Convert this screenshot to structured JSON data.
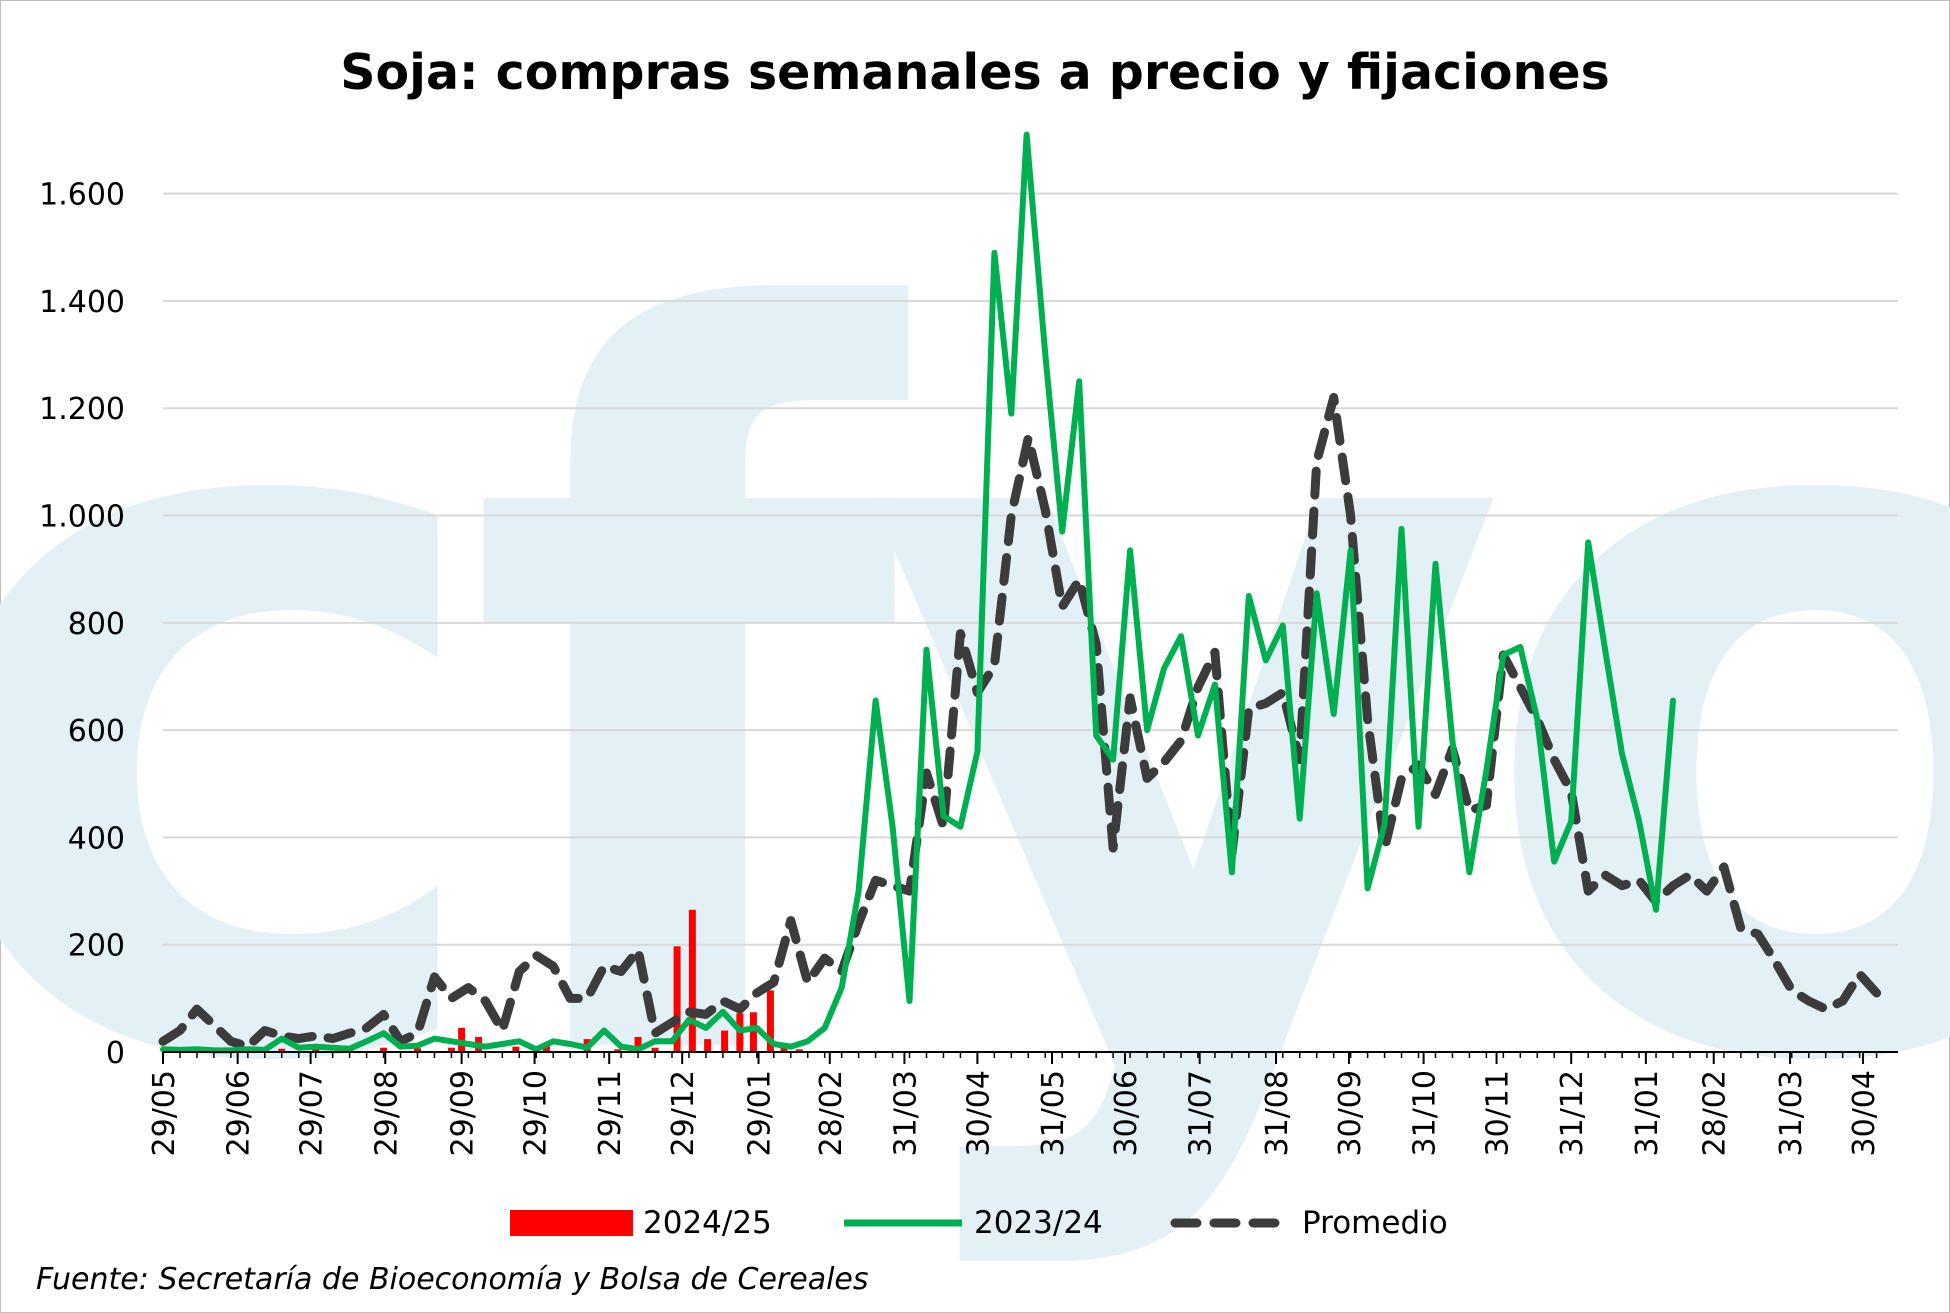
{
  "watermark": {
    "text": "cfyo",
    "color": "#e3f0f5"
  },
  "legend": [
    {
      "key": "bars",
      "label": "2024/25",
      "color": "#ff0000",
      "symbol": "bar"
    },
    {
      "key": "green",
      "label": "2023/24",
      "color": "#00b050",
      "symbol": "line"
    },
    {
      "key": "avg",
      "label": "Promedio",
      "color": "#3c3c3c",
      "symbol": "dashed-line"
    }
  ],
  "source": "Fuente: Secretaría de Bioeconomía y Bolsa de Cereales",
  "chart_data": {
    "type": "line",
    "title": "Soja: compras semanales a precio y fijaciones",
    "xlabel": "",
    "ylabel": "",
    "ylim": [
      0,
      1700
    ],
    "y_ticks": [
      {
        "value": 0,
        "label": "0"
      },
      {
        "value": 200,
        "label": "200"
      },
      {
        "value": 400,
        "label": "400"
      },
      {
        "value": 600,
        "label": "600"
      },
      {
        "value": 800,
        "label": "800"
      },
      {
        "value": 1000,
        "label": "1.000"
      },
      {
        "value": 1200,
        "label": "1.200"
      },
      {
        "value": 1400,
        "label": "1.400"
      },
      {
        "value": 1600,
        "label": "1.600"
      }
    ],
    "x_range": [
      "29/05",
      "30/04"
    ],
    "x_ticks": [
      {
        "label": "29/05",
        "week": 0
      },
      {
        "label": "29/06",
        "week": 4.4
      },
      {
        "label": "29/07",
        "week": 8.7
      },
      {
        "label": "29/08",
        "week": 13.1
      },
      {
        "label": "29/09",
        "week": 17.6
      },
      {
        "label": "29/10",
        "week": 21.9
      },
      {
        "label": "29/11",
        "week": 26.3
      },
      {
        "label": "29/12",
        "week": 30.6
      },
      {
        "label": "29/01",
        "week": 35.1
      },
      {
        "label": "28/02",
        "week": 39.3
      },
      {
        "label": "31/03",
        "week": 43.7
      },
      {
        "label": "30/04",
        "week": 48
      },
      {
        "label": "31/05",
        "week": 52.4
      },
      {
        "label": "30/06",
        "week": 56.7
      },
      {
        "label": "31/07",
        "week": 61.1
      },
      {
        "label": "31/08",
        "week": 65.6
      },
      {
        "label": "30/09",
        "week": 69.9
      },
      {
        "label": "31/10",
        "week": 74.3
      },
      {
        "label": "30/11",
        "week": 78.6
      },
      {
        "label": "31/12",
        "week": 83
      },
      {
        "label": "31/01",
        "week": 87.4
      },
      {
        "label": "28/02",
        "week": 91.4
      },
      {
        "label": "31/03",
        "week": 95.9
      },
      {
        "label": "30/04",
        "week": 100.2
      }
    ],
    "grid": true,
    "legend_position": "bottom",
    "series": [
      {
        "name": "2024/25",
        "kind": "bar",
        "color": "#ff0000",
        "points": [
          [
            7,
            6
          ],
          [
            9,
            5
          ],
          [
            11,
            4
          ],
          [
            13,
            8
          ],
          [
            15,
            7
          ],
          [
            17,
            8
          ],
          [
            17.6,
            45
          ],
          [
            18.6,
            28
          ],
          [
            20.8,
            10
          ],
          [
            22.6,
            14
          ],
          [
            25,
            24
          ],
          [
            26.8,
            5
          ],
          [
            28,
            28
          ],
          [
            29,
            8
          ],
          [
            30.3,
            197
          ],
          [
            31.2,
            265
          ],
          [
            32.1,
            24
          ],
          [
            33.1,
            40
          ],
          [
            34,
            72
          ],
          [
            34.8,
            74
          ],
          [
            35.8,
            115
          ],
          [
            36.6,
            12
          ],
          [
            37.5,
            5
          ]
        ]
      },
      {
        "name": "2023/24",
        "kind": "line",
        "color": "#00b050",
        "points": [
          [
            0,
            5
          ],
          [
            1,
            4
          ],
          [
            2,
            5
          ],
          [
            3,
            3
          ],
          [
            4,
            3
          ],
          [
            5,
            5
          ],
          [
            6,
            4
          ],
          [
            7,
            25
          ],
          [
            8,
            8
          ],
          [
            9,
            10
          ],
          [
            10,
            8
          ],
          [
            11,
            6
          ],
          [
            12,
            20
          ],
          [
            13,
            35
          ],
          [
            14,
            10
          ],
          [
            15,
            12
          ],
          [
            16,
            25
          ],
          [
            17,
            20
          ],
          [
            18,
            15
          ],
          [
            19,
            10
          ],
          [
            20,
            15
          ],
          [
            21,
            20
          ],
          [
            22,
            5
          ],
          [
            23,
            20
          ],
          [
            24,
            15
          ],
          [
            25,
            8
          ],
          [
            26,
            40
          ],
          [
            27,
            10
          ],
          [
            28,
            5
          ],
          [
            29,
            20
          ],
          [
            30,
            20
          ],
          [
            31,
            60
          ],
          [
            32,
            45
          ],
          [
            33,
            75
          ],
          [
            34,
            40
          ],
          [
            35,
            45
          ],
          [
            36,
            15
          ],
          [
            37,
            10
          ],
          [
            38,
            20
          ],
          [
            39,
            45
          ],
          [
            40,
            120
          ],
          [
            41,
            300
          ],
          [
            42,
            655
          ],
          [
            43,
            420
          ],
          [
            44,
            95
          ],
          [
            45,
            750
          ],
          [
            46,
            440
          ],
          [
            47,
            420
          ],
          [
            48,
            560
          ],
          [
            49,
            1490
          ],
          [
            50,
            1190
          ],
          [
            50.9,
            1710
          ],
          [
            52,
            1300
          ],
          [
            53,
            970
          ],
          [
            54,
            1250
          ],
          [
            55,
            590
          ],
          [
            56,
            545
          ],
          [
            57,
            935
          ],
          [
            58,
            600
          ],
          [
            59,
            715
          ],
          [
            60,
            775
          ],
          [
            61,
            590
          ],
          [
            62,
            685
          ],
          [
            63,
            335
          ],
          [
            64,
            850
          ],
          [
            65,
            730
          ],
          [
            66,
            795
          ],
          [
            67,
            435
          ],
          [
            68,
            855
          ],
          [
            69,
            630
          ],
          [
            70,
            935
          ],
          [
            71,
            305
          ],
          [
            72,
            425
          ],
          [
            73,
            975
          ],
          [
            74,
            420
          ],
          [
            75,
            910
          ],
          [
            76,
            580
          ],
          [
            77,
            335
          ],
          [
            78,
            525
          ],
          [
            79,
            740
          ],
          [
            80,
            755
          ],
          [
            81,
            620
          ],
          [
            82,
            355
          ],
          [
            83,
            430
          ],
          [
            84,
            950
          ],
          [
            85,
            750
          ],
          [
            86,
            555
          ],
          [
            87,
            430
          ],
          [
            88,
            265
          ],
          [
            89,
            655
          ]
        ]
      },
      {
        "name": "Promedio",
        "kind": "dashed-line",
        "color": "#3c3c3c",
        "points": [
          [
            0,
            20
          ],
          [
            1,
            40
          ],
          [
            2,
            80
          ],
          [
            3,
            50
          ],
          [
            4,
            20
          ],
          [
            5,
            10
          ],
          [
            6,
            40
          ],
          [
            7,
            30
          ],
          [
            8,
            25
          ],
          [
            9,
            30
          ],
          [
            10,
            25
          ],
          [
            11,
            35
          ],
          [
            12,
            45
          ],
          [
            13,
            70
          ],
          [
            14,
            20
          ],
          [
            15,
            35
          ],
          [
            16,
            140
          ],
          [
            17,
            100
          ],
          [
            18,
            120
          ],
          [
            19,
            95
          ],
          [
            20,
            40
          ],
          [
            21,
            150
          ],
          [
            22,
            180
          ],
          [
            23,
            160
          ],
          [
            24,
            100
          ],
          [
            25,
            100
          ],
          [
            26,
            160
          ],
          [
            27,
            150
          ],
          [
            28,
            190
          ],
          [
            29,
            35
          ],
          [
            30,
            55
          ],
          [
            31,
            75
          ],
          [
            32,
            70
          ],
          [
            33,
            95
          ],
          [
            34,
            80
          ],
          [
            35,
            110
          ],
          [
            36,
            130
          ],
          [
            37,
            245
          ],
          [
            38,
            130
          ],
          [
            39,
            175
          ],
          [
            40,
            150
          ],
          [
            41,
            240
          ],
          [
            42,
            320
          ],
          [
            43,
            310
          ],
          [
            44,
            300
          ],
          [
            45,
            520
          ],
          [
            46,
            420
          ],
          [
            47,
            780
          ],
          [
            48,
            670
          ],
          [
            49,
            720
          ],
          [
            50,
            1000
          ],
          [
            51,
            1145
          ],
          [
            52,
            1010
          ],
          [
            53,
            830
          ],
          [
            54,
            880
          ],
          [
            55,
            760
          ],
          [
            56,
            380
          ],
          [
            57,
            660
          ],
          [
            58,
            510
          ],
          [
            59,
            540
          ],
          [
            60,
            580
          ],
          [
            61,
            680
          ],
          [
            62,
            745
          ],
          [
            63,
            370
          ],
          [
            64,
            640
          ],
          [
            65,
            650
          ],
          [
            66,
            670
          ],
          [
            67,
            545
          ],
          [
            68,
            1100
          ],
          [
            69,
            1220
          ],
          [
            70,
            1000
          ],
          [
            71,
            620
          ],
          [
            72,
            380
          ],
          [
            73,
            510
          ],
          [
            74,
            535
          ],
          [
            75,
            480
          ],
          [
            76,
            565
          ],
          [
            77,
            450
          ],
          [
            78,
            460
          ],
          [
            79,
            740
          ],
          [
            80,
            680
          ],
          [
            81,
            620
          ],
          [
            82,
            545
          ],
          [
            83,
            485
          ],
          [
            84,
            300
          ],
          [
            85,
            330
          ],
          [
            86,
            310
          ],
          [
            87,
            320
          ],
          [
            88,
            280
          ],
          [
            89,
            310
          ],
          [
            90,
            330
          ],
          [
            91,
            300
          ],
          [
            92,
            345
          ],
          [
            93,
            230
          ],
          [
            94,
            220
          ],
          [
            95,
            170
          ],
          [
            96,
            115
          ],
          [
            97,
            95
          ],
          [
            98,
            80
          ],
          [
            99,
            95
          ],
          [
            100,
            145
          ],
          [
            101,
            110
          ]
        ]
      }
    ]
  }
}
